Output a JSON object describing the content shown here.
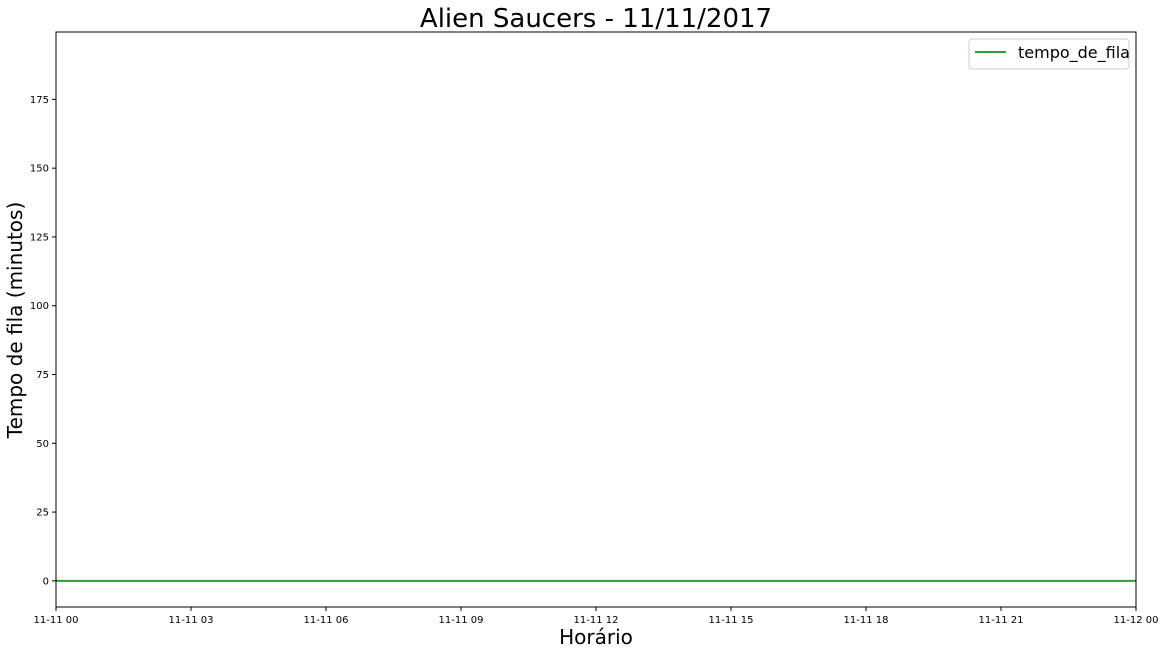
{
  "chart_data": {
    "type": "line",
    "title": "Alien Saucers - 11/11/2017",
    "xlabel": "Horário",
    "ylabel": "Tempo de fila (minutos)",
    "x_ticks": [
      "11-11 00",
      "11-11 03",
      "11-11 06",
      "11-11 09",
      "11-11 12",
      "11-11 15",
      "11-11 18",
      "11-11 21",
      "11-12 00"
    ],
    "x_hours": [
      0,
      3,
      6,
      9,
      12,
      15,
      18,
      21,
      24
    ],
    "xlim": [
      0,
      24
    ],
    "y_ticks": [
      0,
      25,
      50,
      75,
      100,
      125,
      150,
      175
    ],
    "ylim": [
      -9.5,
      199.5
    ],
    "grid": false,
    "legend_position": "top-right",
    "series": [
      {
        "name": "tempo_de_fila",
        "color": "#2ca02c",
        "x": [
          0,
          24
        ],
        "y": [
          0,
          0
        ]
      }
    ]
  }
}
